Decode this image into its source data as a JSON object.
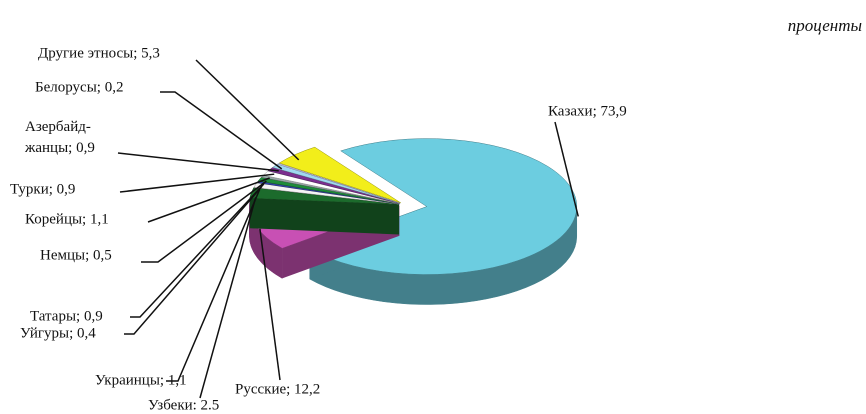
{
  "chart_data": {
    "type": "pie3d",
    "subtitle": "проценты",
    "value_labels": [
      "Казахи; 73,9",
      "Русские; 12,2",
      "Узбеки: 2.5",
      "Украинцы; 1,1",
      "Уйгуры; 0,4",
      "Татары; 0,9",
      "Немцы; 0,5",
      "Корейцы; 1,1",
      "Турки; 0,9",
      "Азербайд-жанцы; 0,9",
      "Белорусы; 0,2",
      "Другие этносы; 5,3"
    ],
    "values": [
      73.9,
      12.2,
      2.5,
      1.1,
      0.4,
      0.9,
      0.5,
      1.1,
      0.9,
      0.9,
      0.2,
      5.3
    ],
    "colors": [
      "#6ccde0",
      "#c850b4",
      "#1c6b2c",
      "#f4f4f4",
      "#3344aa",
      "#1e8c3a",
      "#9aa8a8",
      "#ffffff",
      "#7b2f8f",
      "#9fd8f0",
      "#d8d8ff",
      "#f2ee1a"
    ]
  }
}
